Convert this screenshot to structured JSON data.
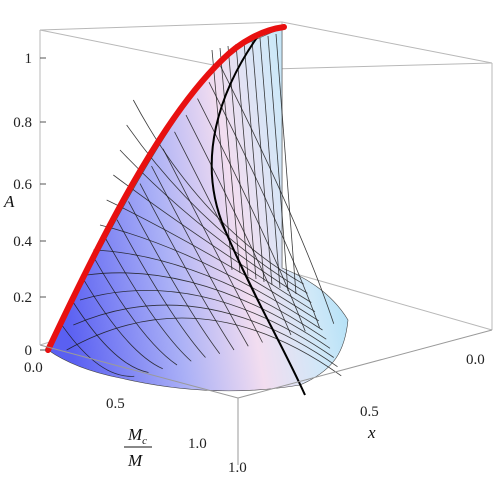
{
  "chart_data": {
    "type": "surface3d",
    "axes": {
      "A": {
        "label": "A",
        "ticks": [
          "0",
          "0.2",
          "0.4",
          "0.6",
          "0.8",
          "1"
        ],
        "range": [
          0,
          1.1
        ]
      },
      "Mc_over_M": {
        "label_numerator": "M",
        "label_numerator_sub": "c",
        "label_denominator": "M",
        "ticks": [
          "0.0",
          "0.5",
          "1.0"
        ],
        "range": [
          0,
          1
        ]
      },
      "x": {
        "label": "x",
        "ticks": [
          "0.0",
          "0.5",
          "1.0"
        ],
        "range": [
          0,
          1
        ]
      }
    },
    "surface": {
      "colormap": [
        "#5a5ef0",
        "#e6e6ff",
        "#ffd9c0",
        "#a8e0f8"
      ],
      "mesh": true
    },
    "highlight_curves": [
      {
        "name": "",
        "color": "#ee1111",
        "description_hidden": true
      },
      {
        "name": "",
        "color": "#000000"
      }
    ],
    "grid": false
  }
}
